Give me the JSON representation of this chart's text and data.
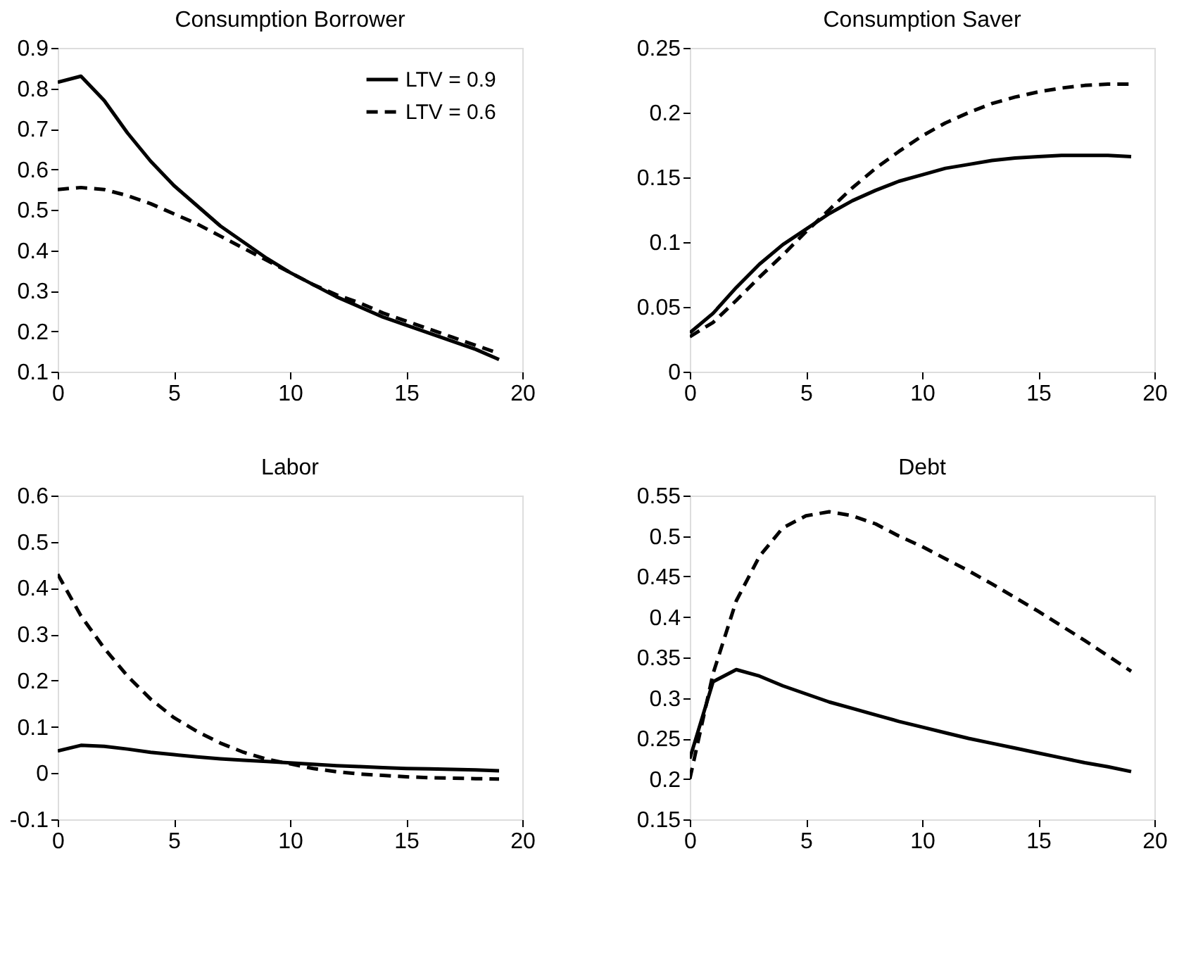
{
  "chart_data": [
    {
      "type": "line",
      "title": "Consumption Borrower",
      "x": [
        0,
        1,
        2,
        3,
        4,
        5,
        6,
        7,
        8,
        9,
        10,
        11,
        12,
        13,
        14,
        15,
        16,
        17,
        18,
        19
      ],
      "xlim": [
        0,
        20
      ],
      "xticks": [
        0,
        5,
        10,
        15,
        20
      ],
      "ylim": [
        0.1,
        0.9
      ],
      "yticks": [
        0.1,
        0.2,
        0.3,
        0.4,
        0.5,
        0.6,
        0.7,
        0.8,
        0.9
      ],
      "grid": false,
      "legend": "top right",
      "series": [
        {
          "name": "LTV = 0.9",
          "color": "#000000",
          "line_style": "solid",
          "values": [
            0.815,
            0.83,
            0.77,
            0.69,
            0.62,
            0.56,
            0.51,
            0.46,
            0.42,
            0.38,
            0.345,
            0.315,
            0.285,
            0.26,
            0.235,
            0.215,
            0.195,
            0.175,
            0.155,
            0.13
          ]
        },
        {
          "name": "LTV = 0.6",
          "color": "#000000",
          "line_style": "dashed",
          "values": [
            0.55,
            0.555,
            0.55,
            0.535,
            0.515,
            0.49,
            0.465,
            0.435,
            0.405,
            0.375,
            0.345,
            0.315,
            0.29,
            0.27,
            0.245,
            0.225,
            0.205,
            0.185,
            0.165,
            0.145
          ]
        }
      ]
    },
    {
      "type": "line",
      "title": "Consumption Saver",
      "x": [
        0,
        1,
        2,
        3,
        4,
        5,
        6,
        7,
        8,
        9,
        10,
        11,
        12,
        13,
        14,
        15,
        16,
        17,
        18,
        19
      ],
      "xlim": [
        0,
        20
      ],
      "xticks": [
        0,
        5,
        10,
        15,
        20
      ],
      "ylim": [
        0,
        0.25
      ],
      "yticks": [
        0,
        0.05,
        {
          "value": 0.1,
          "label": "0.1"
        },
        0.15,
        {
          "value": 0.2,
          "label": "0.2"
        },
        0.25
      ],
      "grid": false,
      "series": [
        {
          "color": "#000000",
          "line_style": "solid",
          "values": [
            0.03,
            0.045,
            0.065,
            0.083,
            0.098,
            0.11,
            0.122,
            0.132,
            0.14,
            0.147,
            0.152,
            0.157,
            0.16,
            0.163,
            0.165,
            0.166,
            0.167,
            0.167,
            0.167,
            0.166
          ]
        },
        {
          "color": "#000000",
          "line_style": "dashed",
          "values": [
            0.027,
            0.038,
            0.055,
            0.073,
            0.09,
            0.108,
            0.125,
            0.142,
            0.157,
            0.17,
            0.182,
            0.192,
            0.2,
            0.207,
            0.212,
            0.216,
            0.219,
            0.221,
            0.222,
            0.222
          ]
        }
      ]
    },
    {
      "type": "line",
      "title": "Labor",
      "x": [
        0,
        1,
        2,
        3,
        4,
        5,
        6,
        7,
        8,
        9,
        10,
        11,
        12,
        13,
        14,
        15,
        16,
        17,
        18,
        19
      ],
      "xlim": [
        0,
        20
      ],
      "xticks": [
        0,
        5,
        10,
        15,
        20
      ],
      "ylim": [
        -0.1,
        0.6
      ],
      "yticks": [
        {
          "value": -0.1,
          "label": "-0.1"
        },
        0,
        0.1,
        0.2,
        0.3,
        0.4,
        0.5,
        0.6
      ],
      "grid": false,
      "series": [
        {
          "color": "#000000",
          "line_style": "solid",
          "values": [
            0.048,
            0.06,
            0.058,
            0.052,
            0.045,
            0.04,
            0.035,
            0.031,
            0.028,
            0.025,
            0.022,
            0.019,
            0.016,
            0.014,
            0.012,
            0.01,
            0.009,
            0.008,
            0.007,
            0.005
          ]
        },
        {
          "color": "#000000",
          "line_style": "dashed",
          "values": [
            0.43,
            0.34,
            0.27,
            0.21,
            0.16,
            0.12,
            0.09,
            0.065,
            0.045,
            0.03,
            0.02,
            0.01,
            0.003,
            -0.002,
            -0.005,
            -0.008,
            -0.01,
            -0.011,
            -0.012,
            -0.013
          ]
        }
      ]
    },
    {
      "type": "line",
      "title": "Debt",
      "x": [
        0,
        1,
        2,
        3,
        4,
        5,
        6,
        7,
        8,
        9,
        10,
        11,
        12,
        13,
        14,
        15,
        16,
        17,
        18,
        19
      ],
      "xlim": [
        0,
        20
      ],
      "xticks": [
        0,
        5,
        10,
        15,
        20
      ],
      "ylim": [
        0.15,
        0.55
      ],
      "yticks": [
        0.15,
        {
          "value": 0.2,
          "label": "0.2"
        },
        0.25,
        {
          "value": 0.3,
          "label": "0.3"
        },
        0.35,
        {
          "value": 0.4,
          "label": "0.4"
        },
        0.45,
        {
          "value": 0.5,
          "label": "0.5"
        },
        0.55
      ],
      "grid": false,
      "series": [
        {
          "color": "#000000",
          "line_style": "solid",
          "values": [
            0.225,
            0.32,
            0.335,
            0.327,
            0.315,
            0.305,
            0.295,
            0.287,
            0.279,
            0.271,
            0.264,
            0.257,
            0.25,
            0.244,
            0.238,
            0.232,
            0.226,
            0.22,
            0.215,
            0.209
          ]
        },
        {
          "color": "#000000",
          "line_style": "dashed",
          "values": [
            0.2,
            0.33,
            0.42,
            0.475,
            0.51,
            0.525,
            0.53,
            0.525,
            0.515,
            0.5,
            0.487,
            0.472,
            0.457,
            0.441,
            0.424,
            0.407,
            0.389,
            0.371,
            0.352,
            0.333
          ]
        }
      ]
    }
  ]
}
